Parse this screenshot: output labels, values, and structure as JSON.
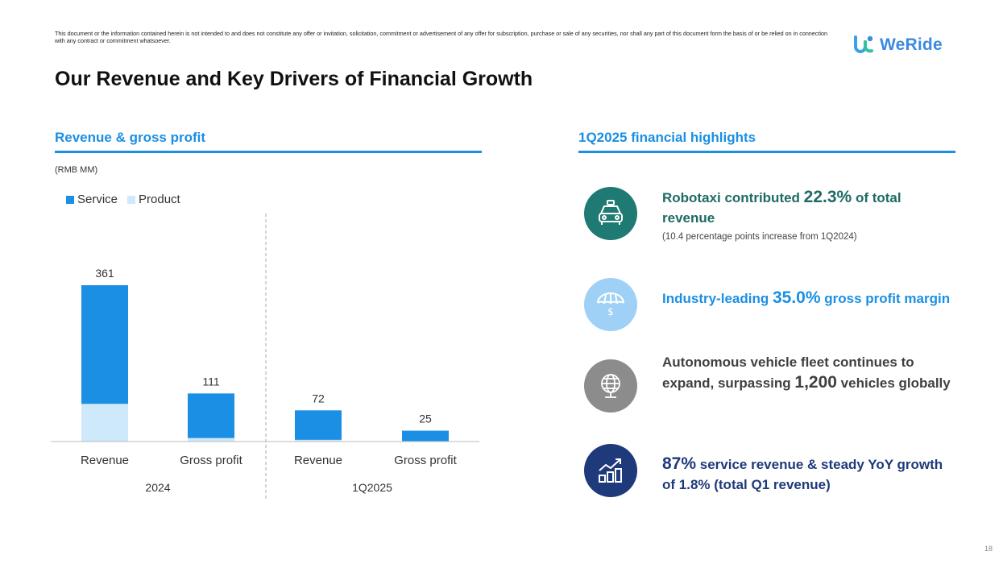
{
  "disclaimer": "This document or the information contained herein is not intended to and does not constitute any offer or invitation, solicitation, commitment or advertisement of any offer for subscription, purchase or sale of any securities, nor shall any part of this document form the basis of or be relied on in connection with any contract or commitment whatsoever.",
  "logo": {
    "text": "WeRide"
  },
  "title": "Our Revenue and Key Drivers of Financial Growth",
  "left_section": {
    "heading": "Revenue & gross profit",
    "unit": "(RMB MM)"
  },
  "right_section": {
    "heading": "1Q2025 financial highlights"
  },
  "legend": {
    "service": "Service",
    "product": "Product"
  },
  "colors": {
    "service": "#1a8fe3",
    "product": "#cde9fa",
    "accent": "#1a8fe3",
    "teal": "#1e7a73",
    "navy": "#1f3a7a",
    "light_blue": "#9fd1f7",
    "gray": "#8c8c8c"
  },
  "chart_data": {
    "type": "bar",
    "stacked": true,
    "unit": "RMB MM",
    "groups": [
      "2024",
      "1Q2025"
    ],
    "categories": [
      "Revenue",
      "Gross profit",
      "Revenue",
      "Gross profit"
    ],
    "category_group": [
      "2024",
      "2024",
      "1Q2025",
      "1Q2025"
    ],
    "series": [
      {
        "name": "Product",
        "values": [
          87,
          8,
          4,
          1
        ]
      },
      {
        "name": "Service",
        "values": [
          274,
          103,
          68,
          24
        ]
      }
    ],
    "totals": [
      "361",
      "111",
      "72",
      "25"
    ],
    "ylim": [
      0,
      361
    ]
  },
  "highlights": [
    {
      "pre": "Robotaxi contributed ",
      "big": "22.3%",
      "post": " of total revenue",
      "sub": "(10.4 percentage points increase from 1Q2024)",
      "icon": "taxi-icon"
    },
    {
      "pre": "Industry-leading ",
      "big": "35.0%",
      "post": " gross profit margin",
      "icon": "umbrella-dollar-icon"
    },
    {
      "pre": "Autonomous vehicle fleet continues to expand, surpassing ",
      "big": "1,200",
      "post": " vehicles globally",
      "icon": "globe-icon"
    },
    {
      "pre": "",
      "big": "87%",
      "post": " service revenue & steady YoY growth of 1.8% (total Q1 revenue)",
      "icon": "growth-chart-icon"
    }
  ],
  "page_number": "18"
}
